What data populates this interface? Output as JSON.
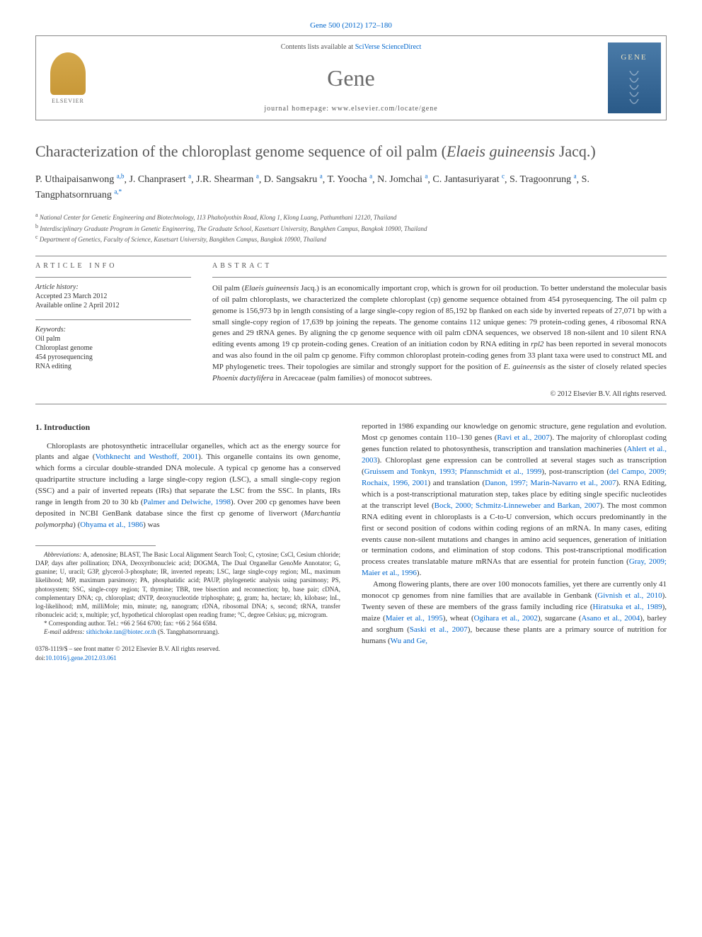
{
  "journal_ref": {
    "journal": "Gene",
    "volume": "500",
    "year": "(2012)",
    "pages": "172–180",
    "link_text": "Gene 500 (2012) 172–180"
  },
  "header": {
    "contents_prefix": "Contents lists available at ",
    "contents_link": "SciVerse ScienceDirect",
    "journal_name": "Gene",
    "homepage_label": "journal homepage: ",
    "homepage_url": "www.elsevier.com/locate/gene",
    "publisher_logo_text": "ELSEVIER",
    "cover_title": "GENE"
  },
  "article": {
    "title_plain": "Characterization of the chloroplast genome sequence of oil palm (",
    "title_species": "Elaeis guineensis",
    "title_tail": " Jacq.)"
  },
  "authors": [
    {
      "name": "P. Uthaipaisanwong",
      "aff": "a,b"
    },
    {
      "name": "J. Chanprasert",
      "aff": "a"
    },
    {
      "name": "J.R. Shearman",
      "aff": "a"
    },
    {
      "name": "D. Sangsakru",
      "aff": "a"
    },
    {
      "name": "T. Yoocha",
      "aff": "a"
    },
    {
      "name": "N. Jomchai",
      "aff": "a"
    },
    {
      "name": "C. Jantasuriyarat",
      "aff": "c"
    },
    {
      "name": "S. Tragoonrung",
      "aff": "a"
    },
    {
      "name": "S. Tangphatsornruang",
      "aff": "a,",
      "corr": "*"
    }
  ],
  "affiliations": [
    {
      "sup": "a",
      "text": "National Center for Genetic Engineering and Biotechnology, 113 Phaholyothin Road, Klong 1, Klong Luang, Pathumthani 12120, Thailand"
    },
    {
      "sup": "b",
      "text": "Interdisciplinary Graduate Program in Genetic Engineering, The Graduate School, Kasetsart University, Bangkhen Campus, Bangkok 10900, Thailand"
    },
    {
      "sup": "c",
      "text": "Department of Genetics, Faculty of Science, Kasetsart University, Bangkhen Campus, Bangkok 10900, Thailand"
    }
  ],
  "article_info": {
    "heading": "ARTICLE INFO",
    "history_label": "Article history:",
    "accepted": "Accepted 23 March 2012",
    "online": "Available online 2 April 2012",
    "keywords_label": "Keywords:",
    "keywords": [
      "Oil palm",
      "Chloroplast genome",
      "454 pyrosequencing",
      "RNA editing"
    ]
  },
  "abstract": {
    "heading": "ABSTRACT",
    "text_parts": [
      "Oil palm (",
      {
        "em": "Elaeis guineensis"
      },
      " Jacq.) is an economically important crop, which is grown for oil production. To better understand the molecular basis of oil palm chloroplasts, we characterized the complete chloroplast (cp) genome sequence obtained from 454 pyrosequencing. The oil palm cp genome is 156,973 bp in length consisting of a large single-copy region of 85,192 bp flanked on each side by inverted repeats of 27,071 bp with a small single-copy region of 17,639 bp joining the repeats. The genome contains 112 unique genes: 79 protein-coding genes, 4 ribosomal RNA genes and 29 tRNA genes. By aligning the cp genome sequence with oil palm cDNA sequences, we observed 18 non-silent and 10 silent RNA editing events among 19 cp protein-coding genes. Creation of an initiation codon by RNA editing in ",
      {
        "em": "rpl2"
      },
      " has been reported in several monocots and was also found in the oil palm cp genome. Fifty common chloroplast protein-coding genes from 33 plant taxa were used to construct ML and MP phylogenetic trees. Their topologies are similar and strongly support for the position of ",
      {
        "em": "E. guineensis"
      },
      " as the sister of closely related species ",
      {
        "em": "Phoenix dactylifera"
      },
      " in Arecaceae (palm families) of monocot subtrees."
    ],
    "copyright": "© 2012 Elsevier B.V. All rights reserved."
  },
  "body": {
    "section1_heading": "1. Introduction",
    "left_paragraph_parts": [
      "Chloroplasts are photosynthetic intracellular organelles, which act as the energy source for plants and algae (",
      {
        "link": "Vothknecht and Westhoff, 2001"
      },
      "). This organelle contains its own genome, which forms a circular double-stranded DNA molecule. A typical cp genome has a conserved quadripartite structure including a large single-copy region (LSC), a small single-copy region (SSC) and a pair of inverted repeats (IRs) that separate the LSC from the SSC. In plants, IRs range in length from 20 to 30 kb (",
      {
        "link": "Palmer and Delwiche, 1998"
      },
      "). Over 200 cp genomes have been deposited in NCBI GenBank database since the first cp genome of liverwort (",
      {
        "em": "Marchantia polymorpha"
      },
      ") (",
      {
        "link": "Ohyama et al., 1986"
      },
      ") was"
    ],
    "right_p1_parts": [
      "reported in 1986 expanding our knowledge on genomic structure, gene regulation and evolution. Most cp genomes contain 110–130 genes (",
      {
        "link": "Ravi et al., 2007"
      },
      "). The majority of chloroplast coding genes function related to photosynthesis, transcription and translation machineries (",
      {
        "link": "Ahlert et al., 2003"
      },
      "). Chloroplast gene expression can be controlled at several stages such as transcription (",
      {
        "link": "Gruissem and Tonkyn, 1993; Pfannschmidt et al., 1999"
      },
      "), post-transcription (",
      {
        "link": "del Campo, 2009; Rochaix, 1996, 2001"
      },
      ") and translation (",
      {
        "link": "Danon, 1997; Marin-Navarro et al., 2007"
      },
      "). RNA Editing, which is a post-transcriptional maturation step, takes place by editing single specific nucleotides at the transcript level (",
      {
        "link": "Bock, 2000; Schmitz-Linneweber and Barkan, 2007"
      },
      "). The most common RNA editing event in chloroplasts is a C-to-U conversion, which occurs predominantly in the first or second position of codons within coding regions of an mRNA. In many cases, editing events cause non-silent mutations and changes in amino acid sequences, generation of initiation or termination codons, and elimination of stop codons. This post-transcriptional modification process creates translatable mature mRNAs that are essential for protein function (",
      {
        "link": "Gray, 2009; Maier et al., 1996"
      },
      ")."
    ],
    "right_p2_parts": [
      "Among flowering plants, there are over 100 monocots families, yet there are currently only 41 monocot cp genomes from nine families that are available in Genbank (",
      {
        "link": "Givnish et al., 2010"
      },
      "). Twenty seven of these are members of the grass family including rice (",
      {
        "link": "Hiratsuka et al., 1989"
      },
      "), maize (",
      {
        "link": "Maier et al., 1995"
      },
      "), wheat (",
      {
        "link": "Ogihara et al., 2002"
      },
      "), sugarcane (",
      {
        "link": "Asano et al., 2004"
      },
      "), barley and sorghum (",
      {
        "link": "Saski et al., 2007"
      },
      "), because these plants are a primary source of nutrition for humans (",
      {
        "link": "Wu and Ge,"
      }
    ]
  },
  "footnotes": {
    "abbrev_label": "Abbreviations:",
    "abbrev_text": " A, adenosine; BLAST, The Basic Local Alignment Search Tool; C, cytosine; CsCl, Cesium chloride; DAP, days after pollination; DNA, Deoxyribonucleic acid; DOGMA, The Dual Organellar GenoMe Annotator; G, guanine; U, uracil; G3P, glycerol-3-phosphate; IR, inverted repeats; LSC, large single-copy region; ML, maximum likelihood; MP, maximum parsimony; PA, phosphatidic acid; PAUP, phylogenetic analysis using parsimony; PS, photosystem; SSC, single-copy region; T, thymine; TBR, tree bisection and reconnection; bp, base pair; cDNA, complementary DNA; cp, chloroplast; dNTP, deoxynucleotide triphosphate; g, gram; ha, hectare; kb, kilobase; lnL, log-likelihood; mM, milliMole; min, minute; ng, nanogram; rDNA, ribosomal DNA; s, second; tRNA, transfer ribonucleic acid; x, multiple; ycf, hypothetical chloroplast open reading frame; °C, degree Celsius; μg, microgram.",
    "corr_label": "* Corresponding author. Tel.: +66 2 564 6700; fax: +66 2 564 6584.",
    "email_label": "E-mail address:",
    "email": "sithichoke.tan@biotec.or.th",
    "email_tail": " (S. Tangphatsornruang)."
  },
  "footer": {
    "issn_line": "0378-1119/$ – see front matter © 2012 Elsevier B.V. All rights reserved.",
    "doi_prefix": "doi:",
    "doi": "10.1016/j.gene.2012.03.061"
  },
  "colors": {
    "link": "#0066cc",
    "text": "#333333",
    "muted": "#555555",
    "border": "#888888",
    "elsevier_orange": "#d4a84b",
    "cover_blue": "#3a6a98"
  }
}
